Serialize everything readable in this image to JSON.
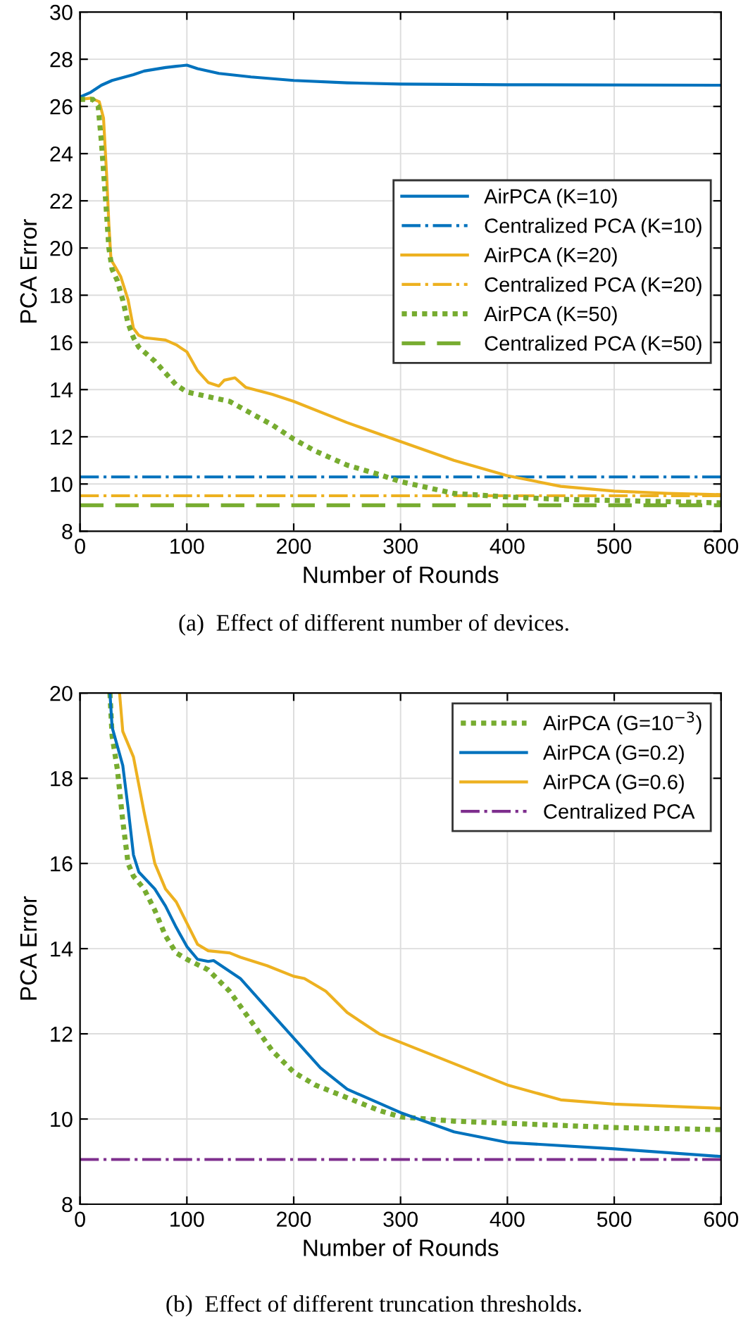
{
  "chart_data": [
    {
      "type": "line",
      "xlabel": "Number of Rounds",
      "ylabel": "PCA Error",
      "xlim": [
        0,
        600
      ],
      "ylim": [
        8,
        30
      ],
      "xticks": [
        0,
        100,
        200,
        300,
        400,
        500,
        600
      ],
      "yticks": [
        8,
        10,
        12,
        14,
        16,
        18,
        20,
        22,
        24,
        26,
        28,
        30
      ],
      "grid": true,
      "legend": "right",
      "annotations": [
        "(a)  Effect of different number of devices."
      ],
      "series": [
        {
          "name": "AirPCA (K=10)",
          "color": "#0072bd",
          "line_style": "solid",
          "x": [
            0,
            10,
            20,
            30,
            50,
            60,
            80,
            90,
            100,
            110,
            130,
            160,
            200,
            250,
            300,
            400,
            600
          ],
          "values": [
            26.4,
            26.6,
            26.9,
            27.1,
            27.35,
            27.5,
            27.65,
            27.7,
            27.75,
            27.6,
            27.4,
            27.25,
            27.1,
            27.0,
            26.95,
            26.92,
            26.9
          ]
        },
        {
          "name": "Centralized PCA (K=10)",
          "color": "#0072bd",
          "line_style": "dashdot",
          "x": [
            0,
            600
          ],
          "values": [
            10.3,
            10.3
          ]
        },
        {
          "name": "AirPCA (K=20)",
          "color": "#edb120",
          "line_style": "solid",
          "x": [
            0,
            10,
            18,
            22,
            25,
            27,
            29,
            33,
            38,
            45,
            50,
            55,
            60,
            80,
            90,
            100,
            110,
            120,
            130,
            135,
            145,
            150,
            155,
            180,
            200,
            250,
            300,
            350,
            400,
            450,
            500,
            550,
            600
          ],
          "values": [
            26.3,
            26.35,
            26.2,
            25.5,
            23,
            21,
            19.5,
            19.2,
            18.8,
            17.8,
            16.6,
            16.3,
            16.2,
            16.1,
            15.9,
            15.6,
            14.8,
            14.3,
            14.15,
            14.4,
            14.5,
            14.3,
            14.1,
            13.8,
            13.5,
            12.6,
            11.8,
            11.0,
            10.35,
            9.9,
            9.7,
            9.6,
            9.55
          ]
        },
        {
          "name": "Centralized PCA (K=20)",
          "color": "#edb120",
          "line_style": "dashdot",
          "x": [
            0,
            600
          ],
          "values": [
            9.5,
            9.5
          ]
        },
        {
          "name": "AirPCA (K=50)",
          "color": "#77ac30",
          "line_style": "dotted",
          "x": [
            0,
            12,
            17,
            20,
            24,
            27,
            30,
            35,
            40,
            45,
            50,
            55,
            70,
            80,
            90,
            100,
            120,
            140,
            160,
            180,
            200,
            220,
            250,
            280,
            300,
            350,
            400,
            450,
            500,
            600
          ],
          "values": [
            26.3,
            26.3,
            26,
            24.5,
            22,
            20,
            19.1,
            18.6,
            17.8,
            16.8,
            16.2,
            15.8,
            15.2,
            14.7,
            14.2,
            13.9,
            13.7,
            13.5,
            13.0,
            12.5,
            11.9,
            11.4,
            10.8,
            10.4,
            10.1,
            9.6,
            9.45,
            9.35,
            9.3,
            9.2
          ]
        },
        {
          "name": "Centralized PCA (K=50)",
          "color": "#77ac30",
          "line_style": "dashed",
          "x": [
            0,
            600
          ],
          "values": [
            9.1,
            9.1
          ]
        }
      ]
    },
    {
      "type": "line",
      "xlabel": "Number of Rounds",
      "ylabel": "PCA Error",
      "xlim": [
        0,
        600
      ],
      "ylim": [
        8,
        20
      ],
      "xticks": [
        0,
        100,
        200,
        300,
        400,
        500,
        600
      ],
      "yticks": [
        8,
        10,
        12,
        14,
        16,
        18,
        20
      ],
      "grid": true,
      "legend": "top right",
      "annotations": [
        "(b)  Effect of different truncation thresholds."
      ],
      "series": [
        {
          "name": "AirPCA (G=10$^{−3}$)",
          "color": "#77ac30",
          "line_style": "dotted",
          "x": [
            28,
            30,
            35,
            40,
            45,
            50,
            60,
            70,
            80,
            90,
            100,
            120,
            140,
            160,
            180,
            200,
            220,
            250,
            280,
            300,
            350,
            400,
            500,
            600
          ],
          "values": [
            20,
            19.0,
            18.2,
            17.0,
            16.0,
            15.7,
            15.4,
            14.9,
            14.3,
            13.9,
            13.75,
            13.5,
            13.0,
            12.3,
            11.6,
            11.1,
            10.8,
            10.5,
            10.2,
            10.05,
            9.95,
            9.9,
            9.8,
            9.75
          ]
        },
        {
          "name": "AirPCA (G=0.2)",
          "color": "#0072bd",
          "line_style": "solid",
          "x": [
            28,
            30,
            40,
            45,
            50,
            55,
            70,
            80,
            90,
            100,
            110,
            120,
            125,
            150,
            175,
            200,
            225,
            250,
            300,
            350,
            400,
            500,
            600
          ],
          "values": [
            20,
            19.2,
            18.3,
            17.3,
            16.2,
            15.8,
            15.4,
            15.0,
            14.5,
            14.05,
            13.75,
            13.7,
            13.72,
            13.3,
            12.6,
            11.9,
            11.2,
            10.7,
            10.15,
            9.7,
            9.45,
            9.3,
            9.12
          ]
        },
        {
          "name": "AirPCA (G=0.6)",
          "color": "#edb120",
          "line_style": "solid",
          "x": [
            37,
            40,
            50,
            60,
            70,
            80,
            90,
            100,
            110,
            120,
            140,
            150,
            175,
            200,
            210,
            230,
            250,
            280,
            300,
            350,
            400,
            450,
            500,
            600
          ],
          "values": [
            20,
            19.1,
            18.5,
            17.2,
            16.0,
            15.4,
            15.1,
            14.6,
            14.1,
            13.95,
            13.9,
            13.8,
            13.6,
            13.35,
            13.3,
            13.0,
            12.5,
            12.0,
            11.8,
            11.3,
            10.8,
            10.45,
            10.35,
            10.25
          ]
        },
        {
          "name": "Centralized PCA",
          "color": "#7e2f8e",
          "line_style": "dashdot",
          "x": [
            0,
            600
          ],
          "values": [
            9.05,
            9.05
          ]
        }
      ]
    }
  ]
}
